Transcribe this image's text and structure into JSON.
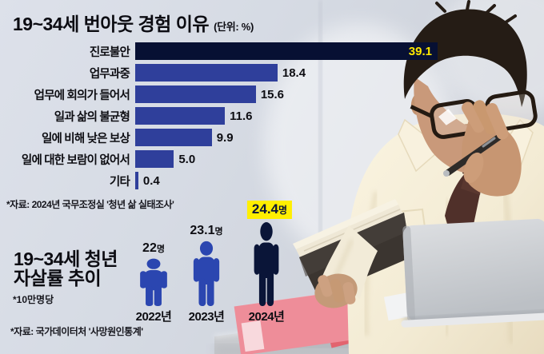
{
  "header": {
    "title": "19~34세 번아웃 경험 이유",
    "unit": "(단위: %)"
  },
  "sources": {
    "burnout": "*자료:  2024년 국무조정실 '청년 삶 실태조사'",
    "suicide": "*자료: 국가데이터처 '사망원인통계'"
  },
  "suicide_section": {
    "title_line1": "19~34세 청년",
    "title_line2": "자살률 추이",
    "per_capita_note": "*10만명당"
  },
  "colors": {
    "bar_navy": "#071033",
    "bar_blue": "#2f3f9b",
    "value_yellow": "#ffe800",
    "icon_blue": "#2b46b0",
    "icon_navy": "#0a1538",
    "highlight_yellow": "#ffef00",
    "text": "#0d0d12",
    "background": "#d6dbe4"
  },
  "chart_data": [
    {
      "type": "bar",
      "orientation": "horizontal",
      "title": "19~34세 번아웃 경험 이유",
      "unit_label": "(단위: %)",
      "categories": [
        "진로불안",
        "업무과중",
        "업무에 회의가 들어서",
        "일과 삶의 불균형",
        "일에 비해 낮은 보상",
        "일에 대한 보람이 없어서",
        "기타"
      ],
      "values": [
        39.1,
        18.4,
        15.6,
        11.6,
        9.9,
        5.0,
        0.4
      ],
      "value_labels": [
        "39.1",
        "18.4",
        "15.6",
        "11.6",
        "9.9",
        "5.0",
        "0.4"
      ],
      "highlight_index": 0,
      "xlim": [
        0,
        40
      ],
      "grid": false,
      "source": "*자료:  2024년 국무조정실 '청년 삶 실태조사'"
    },
    {
      "type": "pictogram",
      "title": "19~34세 청년 자살률 추이",
      "unit_note": "*10만명당",
      "categories": [
        "2022년",
        "2023년",
        "2024년"
      ],
      "values": [
        22,
        23.1,
        24.4
      ],
      "value_labels": [
        "22명",
        "23.1명",
        "24.4명"
      ],
      "items": [
        {
          "year": "2022년",
          "value": "22",
          "unit": "명"
        },
        {
          "year": "2023년",
          "value": "23.1",
          "unit": "명"
        },
        {
          "year": "2024년",
          "value": "24.4",
          "unit": "명"
        }
      ],
      "highlight_index": 2,
      "source": "*자료: 국가데이터처 '사망원인통계'"
    }
  ]
}
